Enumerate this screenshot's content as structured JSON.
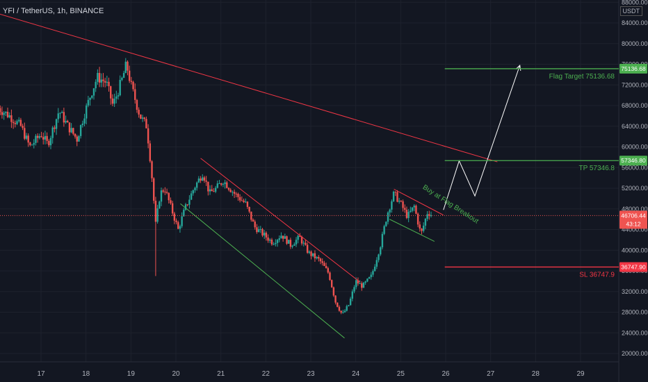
{
  "header": {
    "symbol_title": "YFI / TetherUS, 1h, BINANCE",
    "currency": "USDT"
  },
  "colors": {
    "background": "#131722",
    "up": "#26a69a",
    "down": "#ef5350",
    "target": "#4caf50",
    "stop": "#f23645",
    "trendline": "#f23645",
    "channel_green": "#4caf50",
    "projection": "#ffffff"
  },
  "chart_data": {
    "type": "candlestick",
    "title": "YFI / TetherUS, 1h, BINANCE",
    "ylim": [
      18000,
      88000
    ],
    "y_ticks": [
      20000,
      24000,
      28000,
      32000,
      36000,
      40000,
      44000,
      48000,
      52000,
      56000,
      60000,
      64000,
      68000,
      72000,
      76000,
      80000,
      84000,
      88000
    ],
    "y_tick_labels": [
      "20000.00",
      "24000.00",
      "28000.00",
      "32000.00",
      "36000.00",
      "40000.00",
      "44000.00",
      "48000.00",
      "52000.00",
      "56000.00",
      "60000.00",
      "64000.00",
      "68000.00",
      "72000.00",
      "76000.00",
      "80000.00",
      "84000.00",
      "88000.00"
    ],
    "x_ticks": [
      "17",
      "18",
      "19",
      "20",
      "21",
      "22",
      "23",
      "24",
      "25",
      "26",
      "27",
      "28",
      "29"
    ],
    "xlim": [
      16.05,
      29.8
    ],
    "last_price": {
      "value": 46706.44,
      "label": "46706.44",
      "countdown": "43:12"
    },
    "levels": [
      {
        "name": "Flag Target",
        "value": 75136.68,
        "label": "Flag Target 75136.68",
        "axis_label": "75136.68",
        "color": "#4caf50",
        "x_start": 25.98
      },
      {
        "name": "TP",
        "value": 57346.8,
        "label": "TP 57346.8",
        "axis_label": "57346.80",
        "color": "#4caf50",
        "x_start": 25.98
      },
      {
        "name": "SL",
        "value": 36747.9,
        "label": "SL 36747.9",
        "axis_label": "36747.90",
        "color": "#f23645",
        "x_start": 25.98
      }
    ],
    "annotations": [
      {
        "text": "Buy at Flag Breakout",
        "x": 25.48,
        "y": 52000,
        "rotate": 33,
        "color": "#4caf50"
      }
    ],
    "trendlines": [
      {
        "name": "resistance",
        "color": "#f23645",
        "points": [
          [
            16.05,
            85800
          ],
          [
            27.15,
            57100
          ]
        ]
      },
      {
        "name": "channel-upper",
        "color": "#f23645",
        "points": [
          [
            20.55,
            57800
          ],
          [
            24.1,
            33800
          ]
        ]
      },
      {
        "name": "channel-lower",
        "color": "#4caf50",
        "points": [
          [
            20.1,
            49000
          ],
          [
            23.75,
            23000
          ]
        ]
      },
      {
        "name": "flag-upper",
        "color": "#f23645",
        "points": [
          [
            24.85,
            51800
          ],
          [
            25.95,
            46800
          ]
        ]
      },
      {
        "name": "flag-lower",
        "color": "#4caf50",
        "points": [
          [
            24.75,
            46000
          ],
          [
            25.75,
            41700
          ]
        ]
      }
    ],
    "projection": {
      "color": "#ffffff",
      "points": [
        [
          25.95,
          47800
        ],
        [
          26.3,
          57300
        ],
        [
          26.65,
          50500
        ],
        [
          27.65,
          75800
        ]
      ]
    },
    "price_path": [
      [
        16.05,
        67500
      ],
      [
        16.3,
        66000
      ],
      [
        16.55,
        64000
      ],
      [
        16.75,
        60000
      ],
      [
        17.0,
        62500
      ],
      [
        17.15,
        60500
      ],
      [
        17.4,
        67000
      ],
      [
        17.6,
        64000
      ],
      [
        17.8,
        61500
      ],
      [
        17.95,
        66000
      ],
      [
        18.1,
        70000
      ],
      [
        18.25,
        73500
      ],
      [
        18.45,
        72500
      ],
      [
        18.6,
        68000
      ],
      [
        18.8,
        73000
      ],
      [
        18.9,
        76000
      ],
      [
        19.0,
        72000
      ],
      [
        19.2,
        66000
      ],
      [
        19.35,
        64000
      ],
      [
        19.45,
        56000
      ],
      [
        19.55,
        45000
      ],
      [
        19.65,
        51000
      ],
      [
        19.75,
        52000
      ],
      [
        19.9,
        48000
      ],
      [
        20.05,
        44000
      ],
      [
        20.2,
        48000
      ],
      [
        20.4,
        52000
      ],
      [
        20.6,
        55000
      ],
      [
        20.75,
        51000
      ],
      [
        20.9,
        52000
      ],
      [
        21.05,
        53500
      ],
      [
        21.3,
        51000
      ],
      [
        21.55,
        49000
      ],
      [
        21.75,
        44500
      ],
      [
        21.95,
        43000
      ],
      [
        22.15,
        41500
      ],
      [
        22.35,
        43000
      ],
      [
        22.55,
        41000
      ],
      [
        22.75,
        42500
      ],
      [
        22.95,
        39500
      ],
      [
        23.2,
        38000
      ],
      [
        23.4,
        35500
      ],
      [
        23.55,
        30000
      ],
      [
        23.7,
        27500
      ],
      [
        23.85,
        29500
      ],
      [
        24.0,
        34000
      ],
      [
        24.15,
        33000
      ],
      [
        24.35,
        35000
      ],
      [
        24.55,
        41000
      ],
      [
        24.7,
        47000
      ],
      [
        24.85,
        51000
      ],
      [
        25.0,
        49000
      ],
      [
        25.15,
        46500
      ],
      [
        25.3,
        48500
      ],
      [
        25.45,
        43000
      ],
      [
        25.6,
        47500
      ],
      [
        25.7,
        46706
      ]
    ]
  }
}
